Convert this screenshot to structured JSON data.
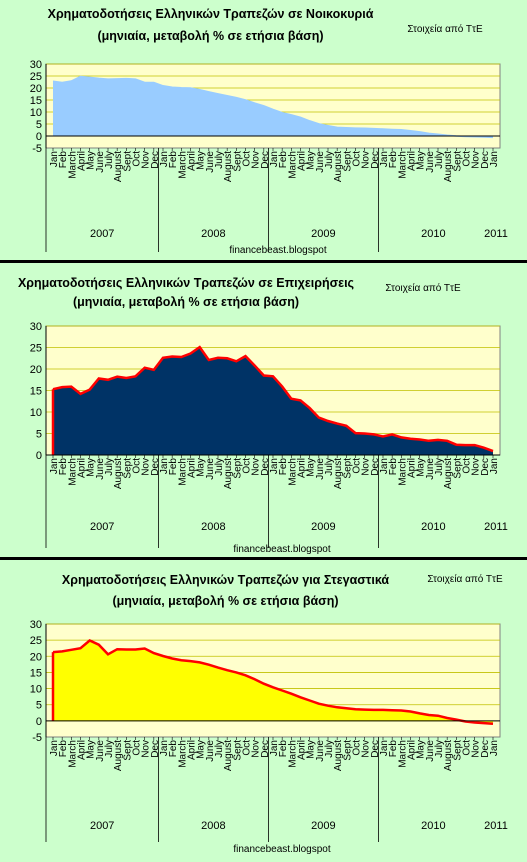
{
  "chart_data": [
    {
      "type": "area",
      "title": "Χρηματοδοτήσεις Ελληνικών Τραπεζών σε Νοικοκυριά",
      "subtitle": "(μηνιαία, μεταβολή % σε ετήσια βάση)",
      "source": "Στοιχεία από ΤτΕ",
      "credit": "financebeast.blogspot",
      "ylim": [
        -5,
        30
      ],
      "yticks": [
        -5,
        0,
        5,
        10,
        15,
        20,
        25,
        30
      ],
      "grid": true,
      "months": [
        "Jan",
        "Feb",
        "March",
        "April",
        "May",
        "June",
        "July",
        "August",
        "Sept",
        "Oct",
        "Nov",
        "Dec",
        "Jan",
        "Feb",
        "March",
        "April",
        "May",
        "June",
        "July",
        "August",
        "Sept",
        "Oct",
        "Nov",
        "Dec",
        "Jan",
        "Feb",
        "March",
        "April",
        "May",
        "June",
        "July",
        "August",
        "Sept",
        "Oct",
        "Nov",
        "Dec",
        "Jan",
        "Feb",
        "March",
        "April",
        "May",
        "June",
        "July",
        "August",
        "Sept",
        "Oct",
        "Nov",
        "Dec",
        "Jan"
      ],
      "years": [
        "2007",
        "2008",
        "2009",
        "2010",
        "2011"
      ],
      "fill": "#99ccff",
      "line": "#99ccff",
      "values": [
        22.8,
        22.3,
        22.9,
        24.8,
        24.4,
        24.0,
        23.7,
        23.8,
        23.9,
        23.7,
        22.3,
        22.3,
        20.9,
        20.3,
        20.1,
        20.0,
        19.3,
        18.4,
        17.6,
        16.8,
        16.0,
        15.0,
        13.7,
        12.6,
        11.1,
        9.7,
        8.8,
        7.8,
        6.3,
        5.1,
        4.3,
        3.6,
        3.4,
        3.3,
        3.2,
        3.1,
        2.9,
        2.7,
        2.6,
        2.2,
        1.7,
        1.1,
        0.7,
        0.3,
        0.0,
        -0.2,
        -0.3,
        -0.4,
        -0.6
      ]
    },
    {
      "type": "area",
      "title": "Χρηματοδοτήσεις Ελληνικών Τραπεζών σε Επιχειρήσεις",
      "subtitle": "(μηνιαία, μεταβολή % σε ετήσια βάση)",
      "source": "Στοιχεία από ΤτΕ",
      "credit": "financebeast.blogspot",
      "ylim": [
        0,
        30
      ],
      "yticks": [
        0,
        5,
        10,
        15,
        20,
        25,
        30
      ],
      "grid": true,
      "months": [
        "Jan",
        "Feb",
        "March",
        "April",
        "May",
        "June",
        "July",
        "August",
        "Sept",
        "Oct",
        "Nov",
        "Dec",
        "Jan",
        "Feb",
        "March",
        "April",
        "May",
        "June",
        "July",
        "August",
        "Sept",
        "Oct",
        "Nov",
        "Dec",
        "Jan",
        "Feb",
        "March",
        "April",
        "May",
        "June",
        "July",
        "August",
        "Sept",
        "Oct",
        "Nov",
        "Dec",
        "Jan",
        "Feb",
        "March",
        "April",
        "May",
        "June",
        "July",
        "August",
        "Sept",
        "Oct",
        "Nov",
        "Dec",
        "Jan"
      ],
      "years": [
        "2007",
        "2008",
        "2009",
        "2010",
        "2011"
      ],
      "fill": "#003366",
      "line": "#ff0000",
      "values": [
        15.3,
        15.8,
        15.9,
        14.2,
        15.2,
        17.8,
        17.5,
        18.2,
        17.9,
        18.3,
        20.3,
        19.8,
        22.6,
        22.9,
        22.8,
        23.6,
        25.1,
        22.1,
        22.6,
        22.5,
        21.8,
        23.0,
        20.8,
        18.5,
        18.3,
        15.9,
        13.1,
        12.7,
        10.9,
        8.7,
        7.9,
        7.3,
        6.8,
        5.1,
        5.0,
        4.8,
        4.3,
        4.8,
        4.1,
        3.8,
        3.6,
        3.3,
        3.5,
        3.3,
        2.4,
        2.3,
        2.3,
        1.7,
        0.9
      ]
    },
    {
      "type": "area",
      "title": "Χρηματοδοτήσεις Ελληνικών Τραπεζών για Στεγαστικά",
      "subtitle": "(μηνιαία, μεταβολή % σε ετήσια βάση)",
      "source": "Στοιχεία από ΤτΕ",
      "credit": "financebeast.blogspot",
      "ylim": [
        -5,
        30
      ],
      "yticks": [
        -5,
        0,
        5,
        10,
        15,
        20,
        25,
        30
      ],
      "grid": true,
      "months": [
        "Jan",
        "Feb",
        "March",
        "April",
        "May",
        "June",
        "July",
        "August",
        "Sept",
        "Oct",
        "Nov",
        "Dec",
        "Jan",
        "Feb",
        "March",
        "April",
        "May",
        "June",
        "July",
        "August",
        "Sept",
        "Oct",
        "Nov",
        "Dec",
        "Jan",
        "Feb",
        "March",
        "April",
        "May",
        "June",
        "July",
        "August",
        "Sept",
        "Oct",
        "Nov",
        "Dec",
        "Jan",
        "Feb",
        "March",
        "April",
        "May",
        "June",
        "July",
        "August",
        "Sept",
        "Oct",
        "Nov",
        "Dec",
        "Jan"
      ],
      "years": [
        "2007",
        "2008",
        "2009",
        "2010",
        "2011"
      ],
      "fill": "#ffff00",
      "line": "#ff0000",
      "values": [
        21.3,
        21.5,
        22.0,
        22.5,
        24.9,
        23.6,
        20.6,
        22.2,
        22.1,
        22.1,
        22.4,
        21.0,
        20.1,
        19.3,
        18.8,
        18.5,
        18.1,
        17.4,
        16.5,
        15.7,
        15.0,
        14.1,
        12.9,
        11.5,
        10.4,
        9.4,
        8.4,
        7.3,
        6.3,
        5.3,
        4.7,
        4.2,
        3.9,
        3.6,
        3.5,
        3.4,
        3.4,
        3.3,
        3.2,
        2.9,
        2.3,
        1.8,
        1.6,
        0.9,
        0.4,
        -0.2,
        -0.5,
        -0.7,
        -0.9
      ]
    }
  ]
}
